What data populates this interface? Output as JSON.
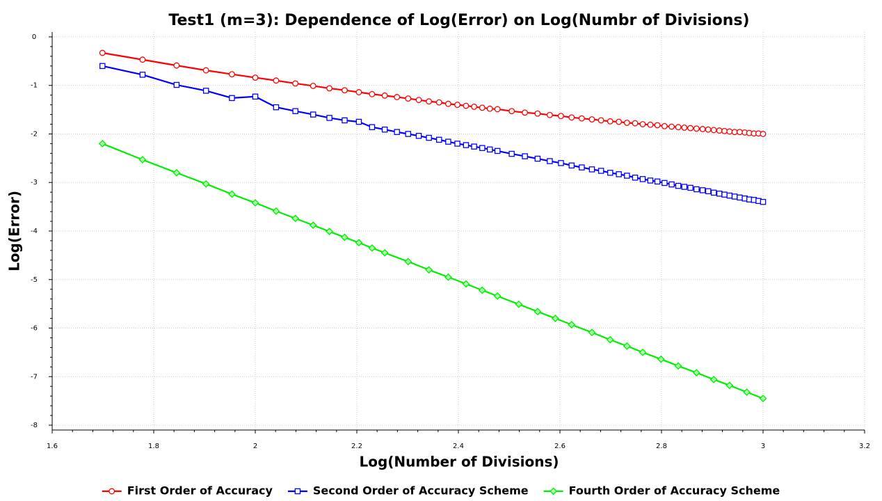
{
  "chart_data": {
    "type": "line",
    "title": "Test1 (m=3): Dependence of Log(Error) on Log(Numbr of Divisions)",
    "x_label": "Log(Number of Divisions)",
    "y_label": "Log(Error)",
    "xlim": [
      1.6,
      3.2
    ],
    "ylim": [
      -8.1,
      0.1
    ],
    "xticks": [
      1.6,
      1.8,
      2,
      2.2,
      2.4,
      2.6,
      2.8,
      3,
      3.2
    ],
    "yticks": [
      0,
      -1,
      -2,
      -3,
      -4,
      -5,
      -6,
      -7,
      -8
    ],
    "grid": true,
    "legend": "bottom",
    "series": [
      {
        "name": "First Order of Accuracy",
        "color": "#ff0000",
        "marker": "circle",
        "x": [
          1.699,
          1.778,
          1.845,
          1.903,
          1.954,
          2.0,
          2.041,
          2.079,
          2.114,
          2.146,
          2.176,
          2.204,
          2.23,
          2.255,
          2.279,
          2.301,
          2.322,
          2.342,
          2.362,
          2.38,
          2.398,
          2.415,
          2.431,
          2.447,
          2.462,
          2.477,
          2.505,
          2.531,
          2.556,
          2.58,
          2.602,
          2.623,
          2.643,
          2.663,
          2.681,
          2.699,
          2.716,
          2.732,
          2.748,
          2.763,
          2.778,
          2.792,
          2.806,
          2.82,
          2.833,
          2.845,
          2.857,
          2.869,
          2.881,
          2.892,
          2.903,
          2.914,
          2.924,
          2.934,
          2.944,
          2.954,
          2.964,
          2.973,
          2.982,
          2.991,
          3.0
        ],
        "values": [
          -0.33,
          -0.47,
          -0.59,
          -0.69,
          -0.77,
          -0.84,
          -0.9,
          -0.96,
          -1.01,
          -1.06,
          -1.1,
          -1.14,
          -1.18,
          -1.21,
          -1.24,
          -1.27,
          -1.3,
          -1.33,
          -1.35,
          -1.38,
          -1.4,
          -1.42,
          -1.44,
          -1.46,
          -1.48,
          -1.49,
          -1.53,
          -1.56,
          -1.58,
          -1.61,
          -1.63,
          -1.66,
          -1.68,
          -1.7,
          -1.72,
          -1.74,
          -1.75,
          -1.77,
          -1.78,
          -1.8,
          -1.81,
          -1.82,
          -1.84,
          -1.85,
          -1.86,
          -1.87,
          -1.88,
          -1.89,
          -1.9,
          -1.91,
          -1.92,
          -1.93,
          -1.94,
          -1.95,
          -1.96,
          -1.96,
          -1.97,
          -1.98,
          -1.99,
          -1.99,
          -2.0
        ]
      },
      {
        "name": "Second Order of Accuracy Scheme",
        "color": "#0000ff",
        "marker": "square",
        "x": [
          1.699,
          1.778,
          1.845,
          1.903,
          1.954,
          2.0,
          2.041,
          2.079,
          2.114,
          2.146,
          2.176,
          2.204,
          2.23,
          2.255,
          2.279,
          2.301,
          2.322,
          2.342,
          2.362,
          2.38,
          2.398,
          2.415,
          2.431,
          2.447,
          2.462,
          2.477,
          2.505,
          2.531,
          2.556,
          2.58,
          2.602,
          2.623,
          2.643,
          2.663,
          2.681,
          2.699,
          2.716,
          2.732,
          2.748,
          2.763,
          2.778,
          2.792,
          2.806,
          2.82,
          2.833,
          2.845,
          2.857,
          2.869,
          2.881,
          2.892,
          2.903,
          2.914,
          2.924,
          2.934,
          2.944,
          2.954,
          2.964,
          2.973,
          2.982,
          2.991,
          3.0
        ],
        "values": [
          -0.6,
          -0.78,
          -0.99,
          -1.11,
          -1.26,
          -1.23,
          -1.45,
          -1.53,
          -1.6,
          -1.67,
          -1.72,
          -1.75,
          -1.86,
          -1.91,
          -1.96,
          -2.0,
          -2.04,
          -2.08,
          -2.12,
          -2.16,
          -2.2,
          -2.23,
          -2.26,
          -2.29,
          -2.32,
          -2.35,
          -2.41,
          -2.46,
          -2.51,
          -2.56,
          -2.6,
          -2.65,
          -2.69,
          -2.73,
          -2.76,
          -2.8,
          -2.83,
          -2.86,
          -2.9,
          -2.93,
          -2.96,
          -2.98,
          -3.01,
          -3.04,
          -3.07,
          -3.09,
          -3.11,
          -3.14,
          -3.16,
          -3.18,
          -3.21,
          -3.23,
          -3.25,
          -3.27,
          -3.29,
          -3.31,
          -3.33,
          -3.35,
          -3.36,
          -3.38,
          -3.4
        ]
      },
      {
        "name": "Fourth Order of Accuracy Scheme",
        "color": "#00ee00",
        "marker": "diamond",
        "x": [
          1.699,
          1.778,
          1.845,
          1.903,
          1.954,
          2.0,
          2.041,
          2.079,
          2.114,
          2.146,
          2.176,
          2.204,
          2.23,
          2.255,
          2.301,
          2.342,
          2.38,
          2.415,
          2.447,
          2.477,
          2.519,
          2.556,
          2.591,
          2.623,
          2.663,
          2.699,
          2.732,
          2.763,
          2.799,
          2.833,
          2.869,
          2.903,
          2.934,
          2.968,
          3.0
        ],
        "values": [
          -2.2,
          -2.53,
          -2.8,
          -3.03,
          -3.24,
          -3.42,
          -3.59,
          -3.74,
          -3.88,
          -4.01,
          -4.13,
          -4.24,
          -4.35,
          -4.45,
          -4.63,
          -4.8,
          -4.95,
          -5.09,
          -5.22,
          -5.34,
          -5.51,
          -5.66,
          -5.8,
          -5.93,
          -6.09,
          -6.24,
          -6.37,
          -6.5,
          -6.64,
          -6.78,
          -6.92,
          -7.06,
          -7.18,
          -7.32,
          -7.45
        ]
      }
    ]
  }
}
